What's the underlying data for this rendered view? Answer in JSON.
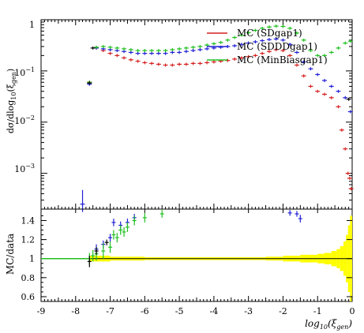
{
  "chart_data": [
    {
      "type": "scatter",
      "xlabel": "log10(ξgen)",
      "ylabel": "dσ/dlog10(ξgen)",
      "x_range": [
        -9,
        0
      ],
      "y_range": [
        0.0002,
        1
      ],
      "y_scale": "log",
      "y_tick_labels": [
        "1",
        "10^-1",
        "10^-2",
        "10^-3"
      ],
      "legend_position": "top-right",
      "series": [
        {
          "name": "MC (SDgap1)",
          "color": "#d62020",
          "points": [
            [
              -7.6,
              0.06
            ],
            [
              -7.4,
              0.28
            ],
            [
              -7.2,
              0.25
            ],
            [
              -7.0,
              0.22
            ],
            [
              -6.8,
              0.2
            ],
            [
              -6.6,
              0.18
            ],
            [
              -6.4,
              0.165
            ],
            [
              -6.2,
              0.155
            ],
            [
              -6.0,
              0.145
            ],
            [
              -5.8,
              0.14
            ],
            [
              -5.6,
              0.135
            ],
            [
              -5.4,
              0.13
            ],
            [
              -5.2,
              0.13
            ],
            [
              -5.0,
              0.135
            ],
            [
              -4.8,
              0.135
            ],
            [
              -4.6,
              0.14
            ],
            [
              -4.4,
              0.14
            ],
            [
              -4.2,
              0.145
            ],
            [
              -4.0,
              0.15
            ],
            [
              -3.8,
              0.155
            ],
            [
              -3.6,
              0.16
            ],
            [
              -3.4,
              0.17
            ],
            [
              -3.2,
              0.18
            ],
            [
              -3.0,
              0.19
            ],
            [
              -2.8,
              0.2
            ],
            [
              -2.6,
              0.22
            ],
            [
              -2.4,
              0.24
            ],
            [
              -2.2,
              0.26
            ],
            [
              -2.0,
              0.25
            ],
            [
              -1.8,
              0.2
            ],
            [
              -1.6,
              0.13
            ],
            [
              -1.4,
              0.08
            ],
            [
              -1.2,
              0.05
            ],
            [
              -1.0,
              0.04
            ],
            [
              -0.8,
              0.035
            ],
            [
              -0.6,
              0.03
            ],
            [
              -0.4,
              0.02
            ],
            [
              -0.3,
              0.007
            ],
            [
              -0.2,
              0.003
            ],
            [
              -0.12,
              0.001
            ],
            [
              -0.07,
              0.0008
            ],
            [
              -0.03,
              0.0005
            ]
          ]
        },
        {
          "name": "MC (SDDDgap1)",
          "color": "#2020d6",
          "points": [
            [
              -7.8,
              0.00025
            ],
            [
              -7.6,
              0.055
            ],
            [
              -7.4,
              0.28
            ],
            [
              -7.2,
              0.27
            ],
            [
              -7.0,
              0.26
            ],
            [
              -6.8,
              0.25
            ],
            [
              -6.6,
              0.24
            ],
            [
              -6.4,
              0.23
            ],
            [
              -6.2,
              0.22
            ],
            [
              -6.0,
              0.22
            ],
            [
              -5.8,
              0.22
            ],
            [
              -5.6,
              0.22
            ],
            [
              -5.4,
              0.22
            ],
            [
              -5.2,
              0.23
            ],
            [
              -5.0,
              0.23
            ],
            [
              -4.8,
              0.24
            ],
            [
              -4.6,
              0.25
            ],
            [
              -4.4,
              0.26
            ],
            [
              -4.2,
              0.27
            ],
            [
              -4.0,
              0.28
            ],
            [
              -3.8,
              0.29
            ],
            [
              -3.6,
              0.3
            ],
            [
              -3.4,
              0.31
            ],
            [
              -3.2,
              0.33
            ],
            [
              -3.0,
              0.35
            ],
            [
              -2.8,
              0.37
            ],
            [
              -2.6,
              0.39
            ],
            [
              -2.4,
              0.41
            ],
            [
              -2.2,
              0.42
            ],
            [
              -2.0,
              0.4
            ],
            [
              -1.8,
              0.33
            ],
            [
              -1.6,
              0.23
            ],
            [
              -1.4,
              0.15
            ],
            [
              -1.2,
              0.11
            ],
            [
              -1.0,
              0.085
            ],
            [
              -0.8,
              0.065
            ],
            [
              -0.6,
              0.05
            ],
            [
              -0.4,
              0.04
            ],
            [
              -0.2,
              0.03
            ],
            [
              -0.05,
              0.016
            ]
          ]
        },
        {
          "name": "MC (MinBiasgap1)",
          "color": "#20c020",
          "points": [
            [
              -7.6,
              0.06
            ],
            [
              -7.4,
              0.29
            ],
            [
              -7.2,
              0.3
            ],
            [
              -7.0,
              0.29
            ],
            [
              -6.8,
              0.28
            ],
            [
              -6.6,
              0.27
            ],
            [
              -6.4,
              0.26
            ],
            [
              -6.2,
              0.25
            ],
            [
              -6.0,
              0.25
            ],
            [
              -5.8,
              0.25
            ],
            [
              -5.6,
              0.25
            ],
            [
              -5.4,
              0.25
            ],
            [
              -5.2,
              0.26
            ],
            [
              -5.0,
              0.27
            ],
            [
              -4.8,
              0.28
            ],
            [
              -4.6,
              0.29
            ],
            [
              -4.4,
              0.3
            ],
            [
              -4.2,
              0.32
            ],
            [
              -4.0,
              0.34
            ],
            [
              -3.8,
              0.36
            ],
            [
              -3.6,
              0.4
            ],
            [
              -3.4,
              0.45
            ],
            [
              -3.2,
              0.5
            ],
            [
              -3.0,
              0.56
            ],
            [
              -2.8,
              0.62
            ],
            [
              -2.6,
              0.68
            ],
            [
              -2.4,
              0.72
            ],
            [
              -2.2,
              0.75
            ],
            [
              -2.0,
              0.74
            ],
            [
              -1.8,
              0.68
            ],
            [
              -1.6,
              0.55
            ],
            [
              -1.4,
              0.4
            ],
            [
              -1.2,
              0.25
            ],
            [
              -1.0,
              0.2
            ],
            [
              -0.8,
              0.2
            ],
            [
              -0.6,
              0.23
            ],
            [
              -0.4,
              0.28
            ],
            [
              -0.2,
              0.35
            ],
            [
              -0.05,
              0.38
            ]
          ]
        },
        {
          "name": "",
          "color": "#000000",
          "points": [
            [
              -7.6,
              0.058
            ],
            [
              -7.5,
              0.28
            ],
            [
              -0.1,
              0.028
            ]
          ]
        }
      ]
    },
    {
      "type": "scatter",
      "ylabel": "MC/data",
      "x_range": [
        -9,
        0
      ],
      "y_range": [
        0.55,
        1.52
      ],
      "reference_line": 1,
      "uncertainty_band_color": "#ffff00",
      "band": [
        [
          -7.6,
          0.03
        ],
        [
          -7.0,
          0.02
        ],
        [
          -6.0,
          0.015
        ],
        [
          -5.0,
          0.015
        ],
        [
          -4.0,
          0.015
        ],
        [
          -3.0,
          0.015
        ],
        [
          -2.5,
          0.02
        ],
        [
          -2.0,
          0.03
        ],
        [
          -1.5,
          0.04
        ],
        [
          -1.0,
          0.05
        ],
        [
          -0.8,
          0.06
        ],
        [
          -0.6,
          0.08
        ],
        [
          -0.45,
          0.1
        ],
        [
          -0.35,
          0.13
        ],
        [
          -0.25,
          0.18
        ],
        [
          -0.18,
          0.25
        ],
        [
          -0.12,
          0.35
        ],
        [
          -0.06,
          0.45
        ],
        [
          0,
          0.55
        ]
      ],
      "series": [
        {
          "name": "MC (SDgap1)",
          "color": "#d62020",
          "points": []
        },
        {
          "name": "MC (SDDDgap1)",
          "color": "#2020d6",
          "points": [
            [
              -7.4,
              1.1,
              0.05
            ],
            [
              -7.2,
              1.15,
              0.04
            ],
            [
              -7.0,
              1.22,
              0.04
            ],
            [
              -6.9,
              1.38,
              0.04
            ],
            [
              -6.7,
              1.35,
              0.04
            ],
            [
              -6.5,
              1.38,
              0.04
            ],
            [
              -6.3,
              1.43,
              0.04
            ],
            [
              -1.8,
              1.48,
              0.03
            ],
            [
              -1.6,
              1.47,
              0.03
            ],
            [
              -1.5,
              1.42,
              0.04
            ]
          ]
        },
        {
          "name": "MC (MinBiasgap1)",
          "color": "#20c020",
          "points": [
            [
              -7.6,
              1.0,
              0.06
            ],
            [
              -7.5,
              1.03,
              0.06
            ],
            [
              -7.4,
              1.05,
              0.07
            ],
            [
              -7.2,
              1.08,
              0.08
            ],
            [
              -7.0,
              1.12,
              0.06
            ],
            [
              -6.9,
              1.25,
              0.05
            ],
            [
              -6.8,
              1.22,
              0.05
            ],
            [
              -6.7,
              1.3,
              0.05
            ],
            [
              -6.6,
              1.28,
              0.05
            ],
            [
              -6.5,
              1.33,
              0.05
            ],
            [
              -6.3,
              1.4,
              0.05
            ],
            [
              -6.0,
              1.43,
              0.05
            ],
            [
              -5.5,
              1.47,
              0.04
            ]
          ]
        },
        {
          "name": "",
          "color": "#000000",
          "points": [
            [
              -7.6,
              0.97,
              0.06
            ],
            [
              -7.4,
              1.08,
              0.04
            ],
            [
              -7.1,
              1.17,
              0.03
            ]
          ]
        }
      ]
    }
  ],
  "axis": {
    "x_ticks": [
      -9,
      -8,
      -7,
      -6,
      -5,
      -4,
      -3,
      -2,
      -1,
      0
    ],
    "x_tick_labels": [
      "-9",
      "-8",
      "-7",
      "-6",
      "-5",
      "-4",
      "-3",
      "-2",
      "-1",
      "0"
    ],
    "ratio_ticks": [
      0.6,
      0.8,
      1.0,
      1.2,
      1.4
    ],
    "ratio_tick_labels": [
      "0.6",
      "0.8",
      "1",
      "1.2",
      "1.4"
    ]
  }
}
